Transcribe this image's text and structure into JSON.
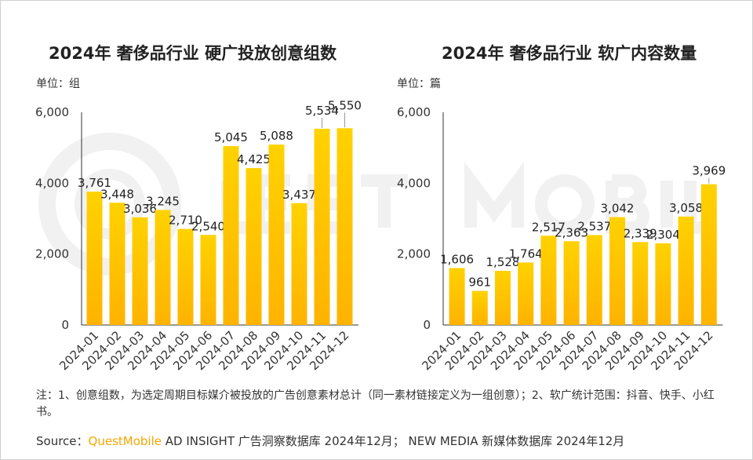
{
  "charts": [
    {
      "title": "2024年 奢侈品行业 硬广投放创意组数",
      "unit": "单位：组"
    },
    {
      "title": "2024年 奢侈品行业 软广内容数量",
      "unit": "单位：篇"
    }
  ],
  "footnote": "注：1、创意组数，为选定周期目标媒介被投放的广告创意素材总计（同一素材链接定义为一组创意）；2、软广统计范围：抖音、快手、小红书。",
  "source": {
    "prefix": "Source：",
    "brand": "QuestMobile",
    "text": " AD INSIGHT 广告洞察数据库 2024年12月；  NEW MEDIA 新媒体数据库 2024年12月"
  },
  "colors": {
    "bar_top": "#ffd200",
    "bar_bottom": "#ffb300",
    "axis": "#333333",
    "watermark": "#f1f1f1"
  },
  "chart_data": [
    {
      "type": "bar",
      "title": "2024年 奢侈品行业 硬广投放创意组数",
      "ylabel": "单位：组",
      "categories": [
        "2024-01",
        "2024-02",
        "2024-03",
        "2024-04",
        "2024-05",
        "2024-06",
        "2024-07",
        "2024-08",
        "2024-09",
        "2024-10",
        "2024-11",
        "2024-12"
      ],
      "values": [
        3761,
        3448,
        3036,
        3245,
        2710,
        2540,
        5045,
        4425,
        5088,
        3437,
        5534,
        5550
      ],
      "value_labels": [
        "3,761",
        "3,448",
        "3,036",
        "3,245",
        "2,710",
        "2,540",
        "5,045",
        "4,425",
        "5,088",
        "3,437",
        "5,534",
        "5,550"
      ],
      "yticks": [
        0,
        2000,
        4000,
        6000
      ],
      "ytick_labels": [
        "0",
        "2,000",
        "4,000",
        "6,000"
      ],
      "ylim": [
        0,
        6000
      ],
      "grid": false
    },
    {
      "type": "bar",
      "title": "2024年 奢侈品行业 软广内容数量",
      "ylabel": "单位：篇",
      "categories": [
        "2024-01",
        "2024-02",
        "2024-03",
        "2024-04",
        "2024-05",
        "2024-06",
        "2024-07",
        "2024-08",
        "2024-09",
        "2024-10",
        "2024-11",
        "2024-12"
      ],
      "values": [
        1606,
        961,
        1528,
        1764,
        2517,
        2363,
        2537,
        3042,
        2339,
        2304,
        3058,
        3969
      ],
      "value_labels": [
        "1,606",
        "961",
        "1,528",
        "1,764",
        "2,517",
        "2,363",
        "2,537",
        "3,042",
        "2,339",
        "2,304",
        "3,058",
        "3,969"
      ],
      "yticks": [
        0,
        2000,
        4000,
        6000
      ],
      "ytick_labels": [
        "0",
        "2,000",
        "4,000",
        "6,000"
      ],
      "ylim": [
        0,
        6000
      ],
      "grid": false
    }
  ]
}
